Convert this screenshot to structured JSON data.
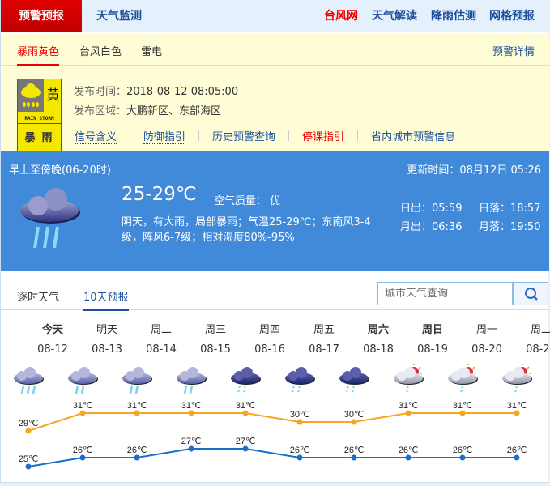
{
  "topnav": {
    "active": "预警预报",
    "monitor": "天气监测",
    "right": [
      "台风网",
      "天气解读",
      "降雨估测",
      "网格预报"
    ]
  },
  "warning": {
    "tabs": [
      "暴雨黄色",
      "台风白色",
      "雷电"
    ],
    "detail": "预警详情",
    "sign": {
      "level": "黄",
      "en": "RAIN STORM",
      "cn": "暴雨"
    },
    "time_label": "发布时间：",
    "time": "2018-08-12 08:05:00",
    "area_label": "发布区域：",
    "area": "大鹏新区、东部海区",
    "links": [
      "信号含义",
      "防御指引",
      "历史预警查询",
      "停课指引",
      "省内城市预警信息"
    ]
  },
  "now": {
    "period": "早上至傍晚(06-20时)",
    "updated": "更新时间：08月12日 05:26",
    "temp": "25-29℃",
    "aqi": "空气质量： 优",
    "desc1": "阴天，有大雨，局部暴雨；气温25-29℃；东南风3-4",
    "desc2": "级，阵风6-7级；相对湿度80%-95%",
    "sunrise": "日出：05:59",
    "sunset": "日落：18:57",
    "moonrise": "月出：06:36",
    "moonset": "月落：19:50"
  },
  "tabs": [
    "逐时天气",
    "10天预报"
  ],
  "search": {
    "placeholder": "城市天气查询"
  },
  "colors": {
    "high": "#f5a623",
    "low": "#1a6fc9",
    "panel": "#418ad9",
    "alert": "#e00000"
  },
  "forecast": {
    "days": [
      {
        "name": "今天",
        "date": "08-12",
        "icon": "heavy-rain"
      },
      {
        "name": "明天",
        "date": "08-13",
        "icon": "moderate-rain"
      },
      {
        "name": "周二",
        "date": "08-14",
        "icon": "moderate-rain"
      },
      {
        "name": "周三",
        "date": "08-15",
        "icon": "moderate-rain"
      },
      {
        "name": "周四",
        "date": "08-16",
        "icon": "light-rain"
      },
      {
        "name": "周五",
        "date": "08-17",
        "icon": "light-rain"
      },
      {
        "name": "周六",
        "date": "08-18",
        "icon": "light-rain"
      },
      {
        "name": "周日",
        "date": "08-19",
        "icon": "shower"
      },
      {
        "name": "周一",
        "date": "08-20",
        "icon": "shower"
      },
      {
        "name": "周二",
        "date": "08-21",
        "icon": "shower"
      }
    ]
  },
  "chart_data": {
    "type": "line",
    "categories": [
      "08-12",
      "08-13",
      "08-14",
      "08-15",
      "08-16",
      "08-17",
      "08-18",
      "08-19",
      "08-20",
      "08-21"
    ],
    "series": [
      {
        "values": [
          29,
          31,
          31,
          31,
          31,
          30,
          30,
          31,
          31,
          31
        ],
        "color": "#f5a623"
      },
      {
        "values": [
          25,
          26,
          26,
          27,
          27,
          26,
          26,
          26,
          26,
          26
        ],
        "color": "#1a6fc9"
      }
    ],
    "unit": "℃"
  }
}
